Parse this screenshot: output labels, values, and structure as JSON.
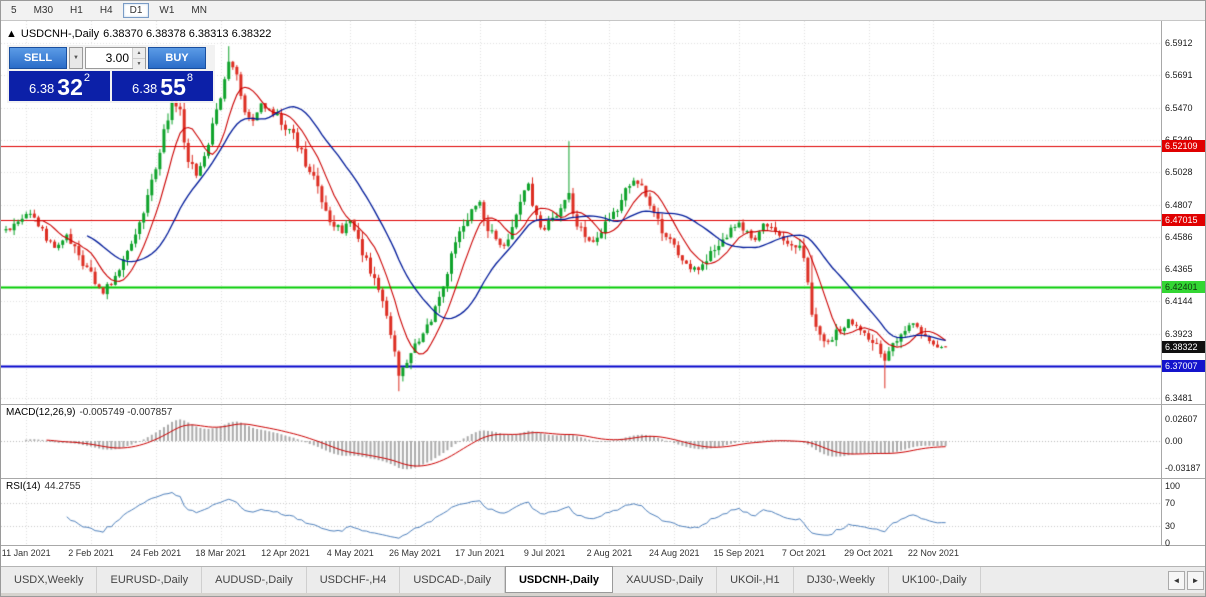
{
  "toolbar": {
    "timeframes": [
      {
        "label": "5",
        "active": false
      },
      {
        "label": "M30",
        "active": false
      },
      {
        "label": "H1",
        "active": false
      },
      {
        "label": "H4",
        "active": false
      },
      {
        "label": "D1",
        "active": true
      },
      {
        "label": "W1",
        "active": false
      },
      {
        "label": "MN",
        "active": false
      }
    ]
  },
  "chart": {
    "title": {
      "collapse_icon": "▲",
      "symbol": "USDCNH-,Daily",
      "ohlc": "6.38370 6.38378 6.38313 6.38322"
    },
    "trade_panel": {
      "sell_label": "SELL",
      "buy_label": "BUY",
      "volume_value": "3.00",
      "dropdown_icon": "▼",
      "spinner_up": "▲",
      "spinner_down": "▼",
      "sell_price_main": "6.38",
      "sell_price_pips": "32",
      "sell_price_sup": "2",
      "buy_price_main": "6.38",
      "buy_price_pips": "55",
      "buy_price_sup": "8"
    },
    "price_axis": {
      "labels": [
        "6.5912",
        "6.5691",
        "6.5470",
        "6.5249",
        "6.5028",
        "6.4807",
        "6.4586",
        "6.4365",
        "6.4144",
        "6.3923",
        "6.3702",
        "6.3481"
      ]
    },
    "levels": [
      {
        "price": 6.52109,
        "label": "6.52109",
        "line": "#e00000",
        "bg": "#e00000",
        "fg": "#ffffff",
        "width": 1
      },
      {
        "price": 6.47015,
        "label": "6.47015",
        "line": "#e00000",
        "bg": "#e00000",
        "fg": "#ffffff",
        "width": 1
      },
      {
        "price": 6.42401,
        "label": "6.42401",
        "line": "#00cc00",
        "bg": "#33d633",
        "fg": "#103510",
        "width": 2
      },
      {
        "price": 6.37007,
        "label": "6.37007",
        "line": "#0000cc",
        "bg": "#1414cc",
        "fg": "#ffffff",
        "width": 2
      }
    ],
    "current_price": {
      "price": 6.38322,
      "label": "6.38322",
      "bg": "#101010",
      "fg": "#ffffff"
    },
    "date_axis": {
      "labels": [
        "11 Jan 2021",
        "2 Feb 2021",
        "24 Feb 2021",
        "18 Mar 2021",
        "12 Apr 2021",
        "4 May 2021",
        "26 May 2021",
        "17 Jun 2021",
        "9 Jul 2021",
        "2 Aug 2021",
        "24 Aug 2021",
        "15 Sep 2021",
        "7 Oct 2021",
        "29 Oct 2021",
        "22 Nov 2021"
      ],
      "tick_indices": [
        5,
        21,
        37,
        53,
        69,
        85,
        101,
        117,
        133,
        149,
        165,
        181,
        197,
        213,
        229
      ]
    },
    "candles": {
      "count": 233,
      "anchors": [
        [
          0,
          6.463
        ],
        [
          3,
          6.469
        ],
        [
          6,
          6.476
        ],
        [
          9,
          6.462
        ],
        [
          12,
          6.452
        ],
        [
          15,
          6.46
        ],
        [
          18,
          6.447
        ],
        [
          21,
          6.432
        ],
        [
          24,
          6.421
        ],
        [
          26,
          6.428
        ],
        [
          29,
          6.443
        ],
        [
          32,
          6.462
        ],
        [
          35,
          6.486
        ],
        [
          37,
          6.505
        ],
        [
          39,
          6.53
        ],
        [
          41,
          6.553
        ],
        [
          43,
          6.543
        ],
        [
          45,
          6.51
        ],
        [
          47,
          6.5
        ],
        [
          49,
          6.515
        ],
        [
          51,
          6.535
        ],
        [
          53,
          6.553
        ],
        [
          55,
          6.576
        ],
        [
          57,
          6.57
        ],
        [
          59,
          6.545
        ],
        [
          61,
          6.536
        ],
        [
          63,
          6.549
        ],
        [
          65,
          6.545
        ],
        [
          68,
          6.538
        ],
        [
          71,
          6.528
        ],
        [
          74,
          6.509
        ],
        [
          77,
          6.492
        ],
        [
          80,
          6.47
        ],
        [
          83,
          6.462
        ],
        [
          85,
          6.469
        ],
        [
          87,
          6.455
        ],
        [
          89,
          6.442
        ],
        [
          91,
          6.428
        ],
        [
          93,
          6.416
        ],
        [
          95,
          6.395
        ],
        [
          97,
          6.365
        ],
        [
          99,
          6.374
        ],
        [
          101,
          6.383
        ],
        [
          103,
          6.392
        ],
        [
          105,
          6.401
        ],
        [
          107,
          6.415
        ],
        [
          109,
          6.436
        ],
        [
          111,
          6.452
        ],
        [
          113,
          6.468
        ],
        [
          115,
          6.477
        ],
        [
          117,
          6.481
        ],
        [
          119,
          6.465
        ],
        [
          121,
          6.455
        ],
        [
          123,
          6.452
        ],
        [
          125,
          6.468
        ],
        [
          127,
          6.485
        ],
        [
          129,
          6.493
        ],
        [
          131,
          6.472
        ],
        [
          133,
          6.464
        ],
        [
          135,
          6.472
        ],
        [
          137,
          6.48
        ],
        [
          139,
          6.487
        ],
        [
          141,
          6.468
        ],
        [
          143,
          6.459
        ],
        [
          145,
          6.456
        ],
        [
          147,
          6.463
        ],
        [
          149,
          6.472
        ],
        [
          151,
          6.479
        ],
        [
          153,
          6.491
        ],
        [
          155,
          6.498
        ],
        [
          157,
          6.492
        ],
        [
          159,
          6.481
        ],
        [
          161,
          6.47
        ],
        [
          163,
          6.458
        ],
        [
          165,
          6.45
        ],
        [
          167,
          6.442
        ],
        [
          169,
          6.435
        ],
        [
          171,
          6.438
        ],
        [
          173,
          6.443
        ],
        [
          175,
          6.452
        ],
        [
          177,
          6.458
        ],
        [
          179,
          6.463
        ],
        [
          181,
          6.468
        ],
        [
          183,
          6.461
        ],
        [
          185,
          6.455
        ],
        [
          187,
          6.468
        ],
        [
          189,
          6.464
        ],
        [
          191,
          6.458
        ],
        [
          193,
          6.455
        ],
        [
          195,
          6.453
        ],
        [
          197,
          6.447
        ],
        [
          198,
          6.428
        ],
        [
          199,
          6.408
        ],
        [
          200,
          6.398
        ],
        [
          201,
          6.39
        ],
        [
          202,
          6.386
        ],
        [
          204,
          6.39
        ],
        [
          206,
          6.395
        ],
        [
          208,
          6.401
        ],
        [
          210,
          6.398
        ],
        [
          212,
          6.393
        ],
        [
          214,
          6.388
        ],
        [
          216,
          6.38
        ],
        [
          217,
          6.373
        ],
        [
          218,
          6.38
        ],
        [
          220,
          6.388
        ],
        [
          222,
          6.396
        ],
        [
          224,
          6.399
        ],
        [
          226,
          6.393
        ],
        [
          228,
          6.388
        ],
        [
          230,
          6.385
        ],
        [
          232,
          6.3832
        ]
      ],
      "spikes": [
        {
          "i": 41,
          "h": 6.571
        },
        {
          "i": 55,
          "h": 6.589
        },
        {
          "i": 97,
          "l": 6.353
        },
        {
          "i": 139,
          "h": 6.524
        },
        {
          "i": 199,
          "h": 6.446
        },
        {
          "i": 217,
          "l": 6.355
        }
      ]
    },
    "colors": {
      "up": "#0fa32b",
      "down": "#dd2e23",
      "ma_fast": "#cc0000",
      "ma_slow": "#001a9a",
      "grid": "#e0e0e0",
      "level_grid": "#c8c8c8"
    }
  },
  "macd": {
    "label": "MACD(12,26,9)",
    "values": "-0.005749 -0.007857",
    "axis_labels": [
      "0.02607",
      "0.00",
      "-0.03187"
    ],
    "hist_color": "#ababab",
    "signal_color": "#cc0000"
  },
  "rsi": {
    "label": "RSI(14)",
    "value": "44.2755",
    "axis_labels": [
      "100",
      "70",
      "30",
      "0"
    ],
    "levels": [
      70,
      30
    ],
    "line_color": "#4f81bd"
  },
  "tabs": {
    "scroll_left": "◄",
    "scroll_right": "►",
    "items": [
      {
        "label": "USDX,Weekly",
        "active": false
      },
      {
        "label": "EURUSD-,Daily",
        "active": false
      },
      {
        "label": "AUDUSD-,Daily",
        "active": false
      },
      {
        "label": "USDCHF-,H4",
        "active": false
      },
      {
        "label": "USDCAD-,Daily",
        "active": false
      },
      {
        "label": "USDCNH-,Daily",
        "active": true
      },
      {
        "label": "XAUUSD-,Daily",
        "active": false
      },
      {
        "label": "UKOil-,H1",
        "active": false
      },
      {
        "label": "DJ30-,Weekly",
        "active": false
      },
      {
        "label": "UK100-,Daily",
        "active": false
      }
    ]
  }
}
